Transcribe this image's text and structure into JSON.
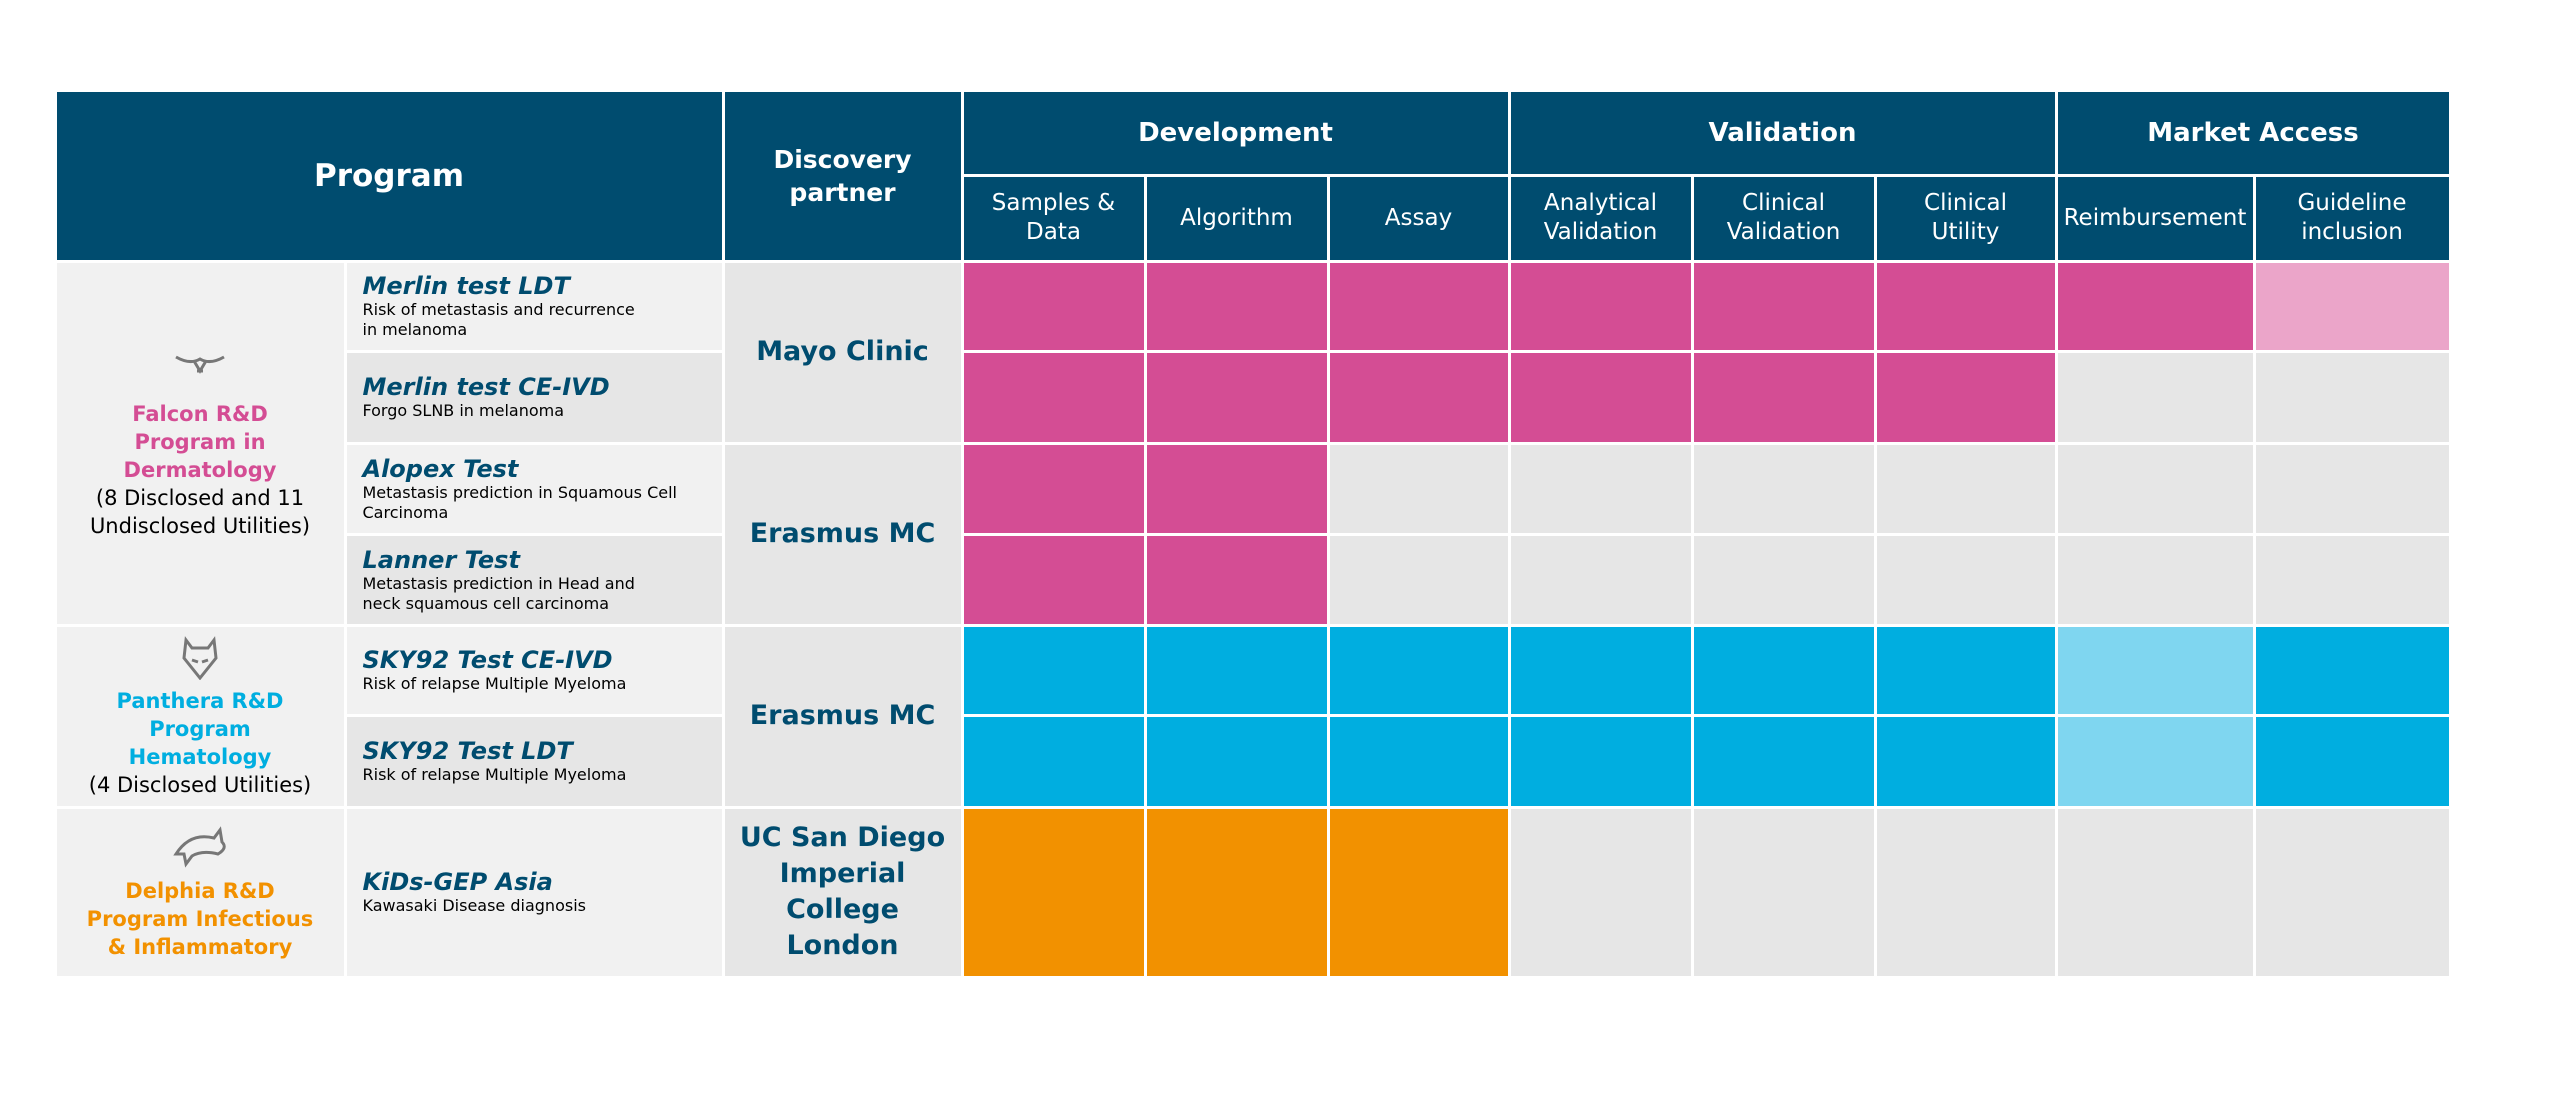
{
  "header": {
    "program": "Program",
    "discovery_partner": "Discovery partner",
    "phases": [
      {
        "name": "Development",
        "steps": [
          "Samples & Data",
          "Algorithm",
          "Assay"
        ]
      },
      {
        "name": "Validation",
        "steps": [
          "Analytical Validation",
          "Clinical Validation",
          "Clinical Utility"
        ]
      },
      {
        "name": "Market Access",
        "steps": [
          "Reimbursement",
          "Guideline inclusion"
        ]
      }
    ]
  },
  "programs": [
    {
      "name": "Falcon R&D Program in Dermatology",
      "note": "(8 Disclosed and 11 Undisclosed Utilities)",
      "color": "#d44d94",
      "partners": [
        {
          "name": "Mayo Clinic",
          "tests": [
            {
              "name": "Merlin test LDT",
              "description": "Risk of metastasis and recurrence in melanoma",
              "cells": [
                "#d44d94",
                "#d44d94",
                "#d44d94",
                "#d44d94",
                "#d44d94",
                "#d44d94",
                "#d44d94",
                "#eba5c9"
              ]
            },
            {
              "name": "Merlin test CE-IVD",
              "description": "Forgo SLNB in melanoma",
              "cells": [
                "#d44d94",
                "#d44d94",
                "#d44d94",
                "#d44d94",
                "#d44d94",
                "#d44d94",
                null,
                null
              ]
            }
          ]
        },
        {
          "name": "Erasmus MC",
          "tests": [
            {
              "name": "Alopex Test",
              "description": "Metastasis prediction in Squamous Cell Carcinoma",
              "cells": [
                "#d44d94",
                "#d44d94",
                null,
                null,
                null,
                null,
                null,
                null
              ]
            },
            {
              "name": "Lanner Test",
              "description": "Metastasis prediction in Head and neck squamous cell carcinoma",
              "cells": [
                "#d44d94",
                "#d44d94",
                null,
                null,
                null,
                null,
                null,
                null
              ]
            }
          ]
        }
      ]
    },
    {
      "name": "Panthera R&D Program Hematology",
      "note": "(4 Disclosed Utilities)",
      "color": "#00aee0",
      "partners": [
        {
          "name": "Erasmus MC",
          "tests": [
            {
              "name": "SKY92 Test CE-IVD",
              "description": "Risk of relapse Multiple Myeloma",
              "cells": [
                "#00aee0",
                "#00aee0",
                "#00aee0",
                "#00aee0",
                "#00aee0",
                "#00aee0",
                "#7fd6f0",
                "#00aee0"
              ]
            },
            {
              "name": "SKY92 Test LDT",
              "description": "Risk of relapse Multiple Myeloma",
              "cells": [
                "#00aee0",
                "#00aee0",
                "#00aee0",
                "#00aee0",
                "#00aee0",
                "#00aee0",
                "#7fd6f0",
                "#00aee0"
              ]
            }
          ]
        }
      ]
    },
    {
      "name": "Delphia R&D Program Infectious & Inflammatory",
      "note": null,
      "color": "#f29100",
      "partners": [
        {
          "name": "UC San Diego Imperial College London",
          "tests": [
            {
              "name": "KiDs-GEP Asia",
              "description": "Kawasaki Disease diagnosis",
              "cells": [
                "#f29100",
                "#f29100",
                "#f29100",
                null,
                null,
                null,
                null,
                null
              ]
            }
          ]
        }
      ]
    }
  ]
}
